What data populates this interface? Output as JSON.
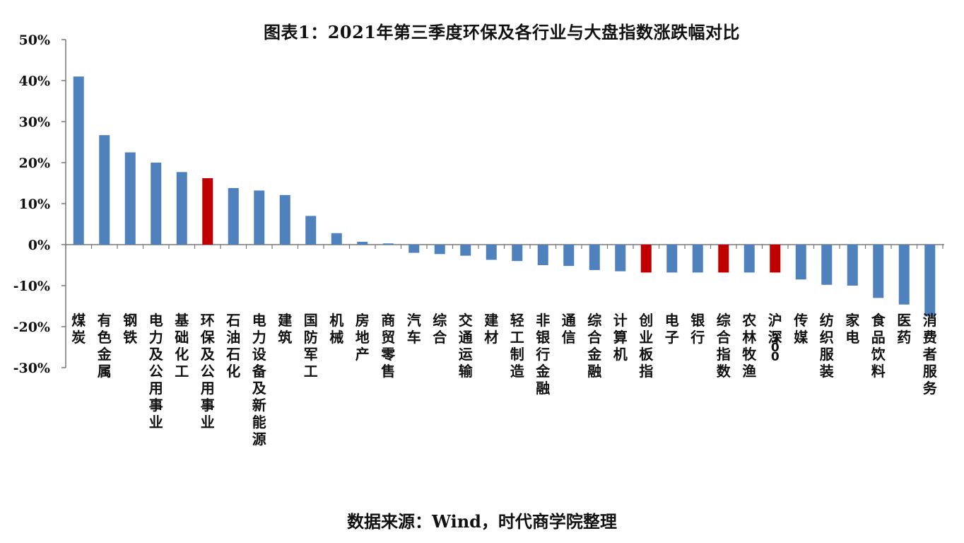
{
  "chart_data": {
    "type": "bar",
    "title": "图表1：2021年第三季度环保及各行业与大盘指数涨跌幅对比",
    "source": "数据来源：Wind，时代商学院整理",
    "xlabel": "",
    "ylabel": "",
    "ylim": [
      -0.3,
      0.5
    ],
    "ytick_step": 0.1,
    "ytick_labels": [
      "50%",
      "40%",
      "30%",
      "20%",
      "10%",
      "0%",
      "-10%",
      "-20%",
      "-30%"
    ],
    "grid": false,
    "legend": "none",
    "colors": {
      "default": "#4f81bd",
      "highlight": "#c00000"
    },
    "categories": [
      "煤炭",
      "有色金属",
      "钢铁",
      "电力及公用事业",
      "基础化工",
      "环保及公用事业",
      "石油石化",
      "电力设备及新能源",
      "建筑",
      "国防军工",
      "机械",
      "房地产",
      "商贸零售",
      "汽车",
      "综合",
      "交通运输",
      "建材",
      "轻工制造",
      "非银行金融",
      "通信",
      "综合金融",
      "计算机",
      "创业板指",
      "电子",
      "银行",
      "综合指数",
      "农林牧渔",
      "沪深300",
      "传媒",
      "纺织服装",
      "家电",
      "食品饮料",
      "医药",
      "消费者服务"
    ],
    "values": [
      0.41,
      0.267,
      0.225,
      0.2,
      0.177,
      0.162,
      0.138,
      0.132,
      0.121,
      0.07,
      0.028,
      0.007,
      0.003,
      -0.02,
      -0.023,
      -0.027,
      -0.037,
      -0.04,
      -0.05,
      -0.052,
      -0.062,
      -0.065,
      -0.068,
      -0.068,
      -0.068,
      -0.068,
      -0.068,
      -0.068,
      -0.085,
      -0.098,
      -0.1,
      -0.13,
      -0.146,
      -0.175
    ],
    "highlighted": [
      "环保及公用事业",
      "创业板指",
      "综合指数",
      "沪深300"
    ]
  }
}
